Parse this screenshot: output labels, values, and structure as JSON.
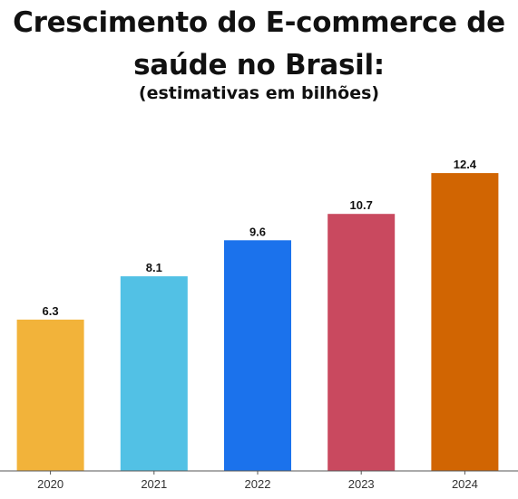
{
  "chart_data": {
    "type": "bar",
    "title_lines": [
      "Crescimento do E-commerce de",
      "saúde no Brasil:"
    ],
    "subtitle": "(estimativas em bilhões)",
    "categories": [
      "2020",
      "2021",
      "2022",
      "2023",
      "2024"
    ],
    "values": [
      6.3,
      8.1,
      9.6,
      10.7,
      12.4
    ],
    "value_labels": [
      "6.3",
      "8.1",
      "9.6",
      "10.7",
      "12.4"
    ],
    "colors": [
      "#F2B33A",
      "#52C1E5",
      "#1B72EC",
      "#C9495F",
      "#D16502"
    ],
    "xlabel": "",
    "ylabel": "",
    "ylim": [
      0,
      14.4
    ],
    "grid": false,
    "legend": "none"
  }
}
